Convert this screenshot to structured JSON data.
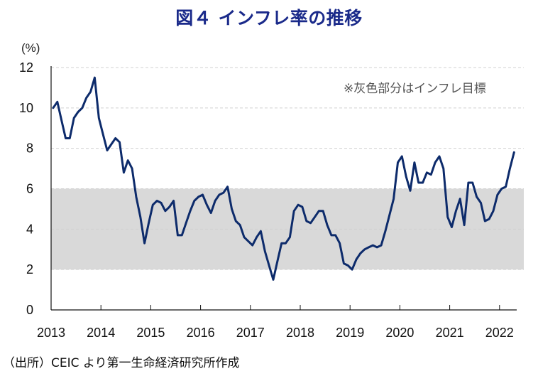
{
  "chart_data": {
    "type": "line",
    "title": "図４ インフレ率の推移",
    "ylabel": "(%)",
    "xlabel": "",
    "ylim": [
      0,
      12
    ],
    "yticks": [
      "0",
      "2",
      "4",
      "6",
      "8",
      "10",
      "12"
    ],
    "xticks": [
      "2013",
      "2014",
      "2015",
      "2016",
      "2017",
      "2018",
      "2019",
      "2020",
      "2021",
      "2022"
    ],
    "x_start": "2013-01",
    "x_frequency": "monthly",
    "grid": "horizontal-dashed",
    "target_band": {
      "low": 2,
      "high": 6,
      "color": "#d9d9d9",
      "label": "※灰色部分はインフレ目標"
    },
    "series": [
      {
        "name": "インフレ率",
        "color": "#0d2b6b",
        "values": [
          10.0,
          10.3,
          9.4,
          8.5,
          8.5,
          9.5,
          9.8,
          10.0,
          10.5,
          10.8,
          11.5,
          9.5,
          8.7,
          7.9,
          8.2,
          8.5,
          8.3,
          6.8,
          7.4,
          7.0,
          5.6,
          4.6,
          3.3,
          4.3,
          5.2,
          5.4,
          5.3,
          4.9,
          5.1,
          5.4,
          3.7,
          3.7,
          4.3,
          4.9,
          5.4,
          5.6,
          5.7,
          5.2,
          4.8,
          5.4,
          5.7,
          5.8,
          6.1,
          5.0,
          4.4,
          4.2,
          3.6,
          3.4,
          3.2,
          3.6,
          3.9,
          2.9,
          2.2,
          1.5,
          2.4,
          3.3,
          3.3,
          3.6,
          4.9,
          5.2,
          5.1,
          4.4,
          4.3,
          4.6,
          4.9,
          4.9,
          4.2,
          3.7,
          3.7,
          3.3,
          2.3,
          2.2,
          2.0,
          2.5,
          2.8,
          3.0,
          3.1,
          3.2,
          3.1,
          3.2,
          3.9,
          4.7,
          5.5,
          7.3,
          7.6,
          6.6,
          5.9,
          7.3,
          6.3,
          6.3,
          6.8,
          6.7,
          7.3,
          7.6,
          7.0,
          4.6,
          4.1,
          4.9,
          5.5,
          4.2,
          6.3,
          6.3,
          5.6,
          5.3,
          4.4,
          4.5,
          4.9,
          5.7,
          6.0,
          6.1,
          7.0,
          7.8
        ]
      }
    ]
  },
  "header": {
    "title": "図４ インフレ率の推移"
  },
  "axis": {
    "unit": "(%)"
  },
  "note": "※灰色部分はインフレ目標",
  "source": "（出所）CEIC より第一生命経済研究所作成"
}
